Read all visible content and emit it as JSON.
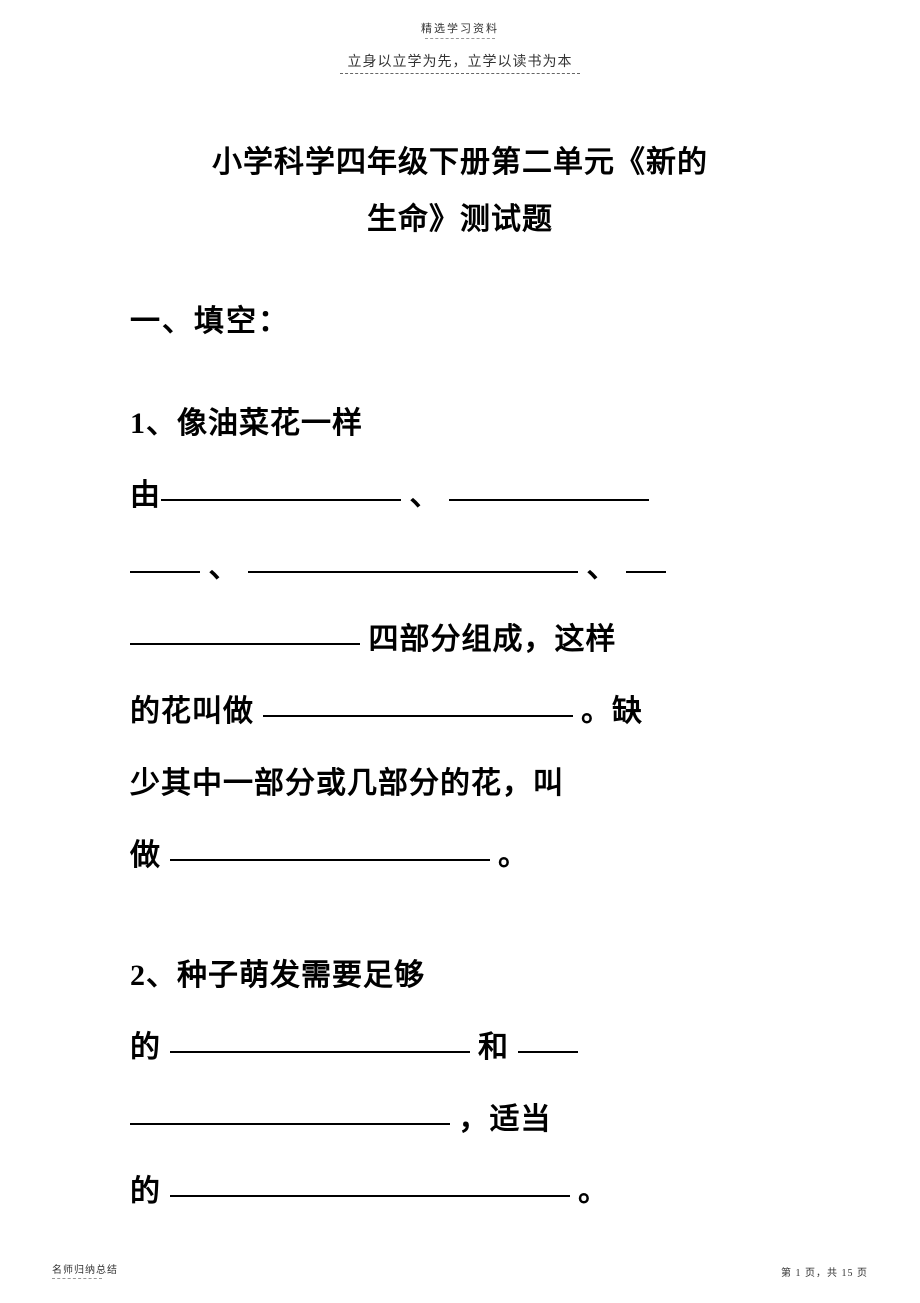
{
  "header": {
    "small_text": "精选学习资料",
    "motto": "立身以立学为先，立学以读书为本"
  },
  "title": {
    "line1": "小学科学四年级下册第二单元《新的",
    "line2": "生命》测试题"
  },
  "section_heading": "一、填空：",
  "q1": {
    "part1": "1、像油菜花一样",
    "part2": "由",
    "part3": "、",
    "part4": "、",
    "part5": "、",
    "part6": " 四部分组成，这样",
    "part7": "的花叫做 ",
    "part8": " 。缺",
    "part9": "少其中一部分或几部分的花，叫",
    "part10": "做",
    "part11": " 。"
  },
  "q2": {
    "part1": "2、种子萌发需要足够",
    "part2": "的",
    "part3": "和 ",
    "part4": "，适当",
    "part5": "的",
    "part6": "。"
  },
  "footer": {
    "left": "名师归纳总结",
    "right": "第 1 页，共 15 页"
  },
  "blanks": {
    "b1": 240,
    "b2": 200,
    "b3": 70,
    "b4": 330,
    "b5": 40,
    "b6": 230,
    "b7": 310,
    "b8": 320,
    "b9": 300,
    "b10": 60,
    "b11": 320,
    "b12": 400
  }
}
